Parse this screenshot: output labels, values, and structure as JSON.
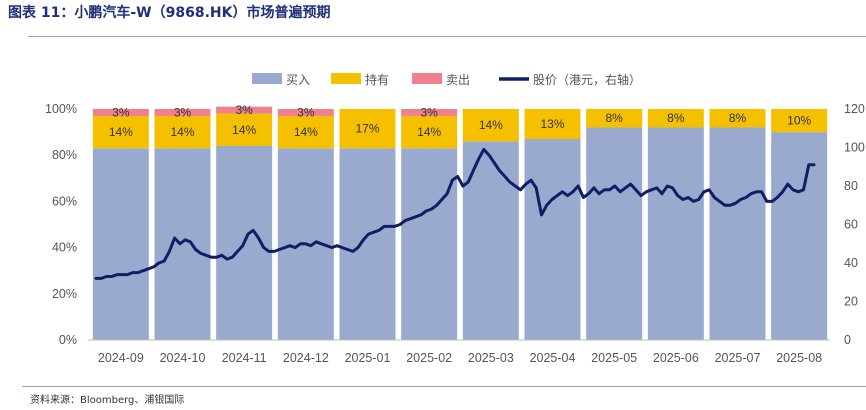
{
  "title": {
    "prefix": "图表 11：",
    "text": "小鹏汽车-W（9868.HK）市场普遍预期"
  },
  "source": "资料来源：Bloomberg、浦银国际",
  "colors": {
    "buy": "#9aaace",
    "hold": "#f5c000",
    "sell": "#f0808e",
    "price": "#0e1f66",
    "title": "#1f2f7a"
  },
  "chart_data": {
    "type": "bar",
    "stacked": true,
    "percent": true,
    "categories": [
      "2024-09",
      "2024-10",
      "2024-11",
      "2024-12",
      "2025-01",
      "2025-02",
      "2025-03",
      "2025-04",
      "2025-05",
      "2025-06",
      "2025-07",
      "2025-08"
    ],
    "series": [
      {
        "name": "买入",
        "values": [
          83,
          83,
          84,
          83,
          83,
          83,
          86,
          87,
          92,
          92,
          92,
          90
        ]
      },
      {
        "name": "持有",
        "values": [
          14,
          14,
          14,
          14,
          17,
          14,
          14,
          13,
          8,
          8,
          8,
          10
        ]
      },
      {
        "name": "卖出",
        "values": [
          3,
          3,
          3,
          3,
          0,
          3,
          0,
          0,
          0,
          0,
          0,
          0
        ]
      }
    ],
    "hold_labels": [
      "14%",
      "14%",
      "14%",
      "14%",
      "17%",
      "14%",
      "14%",
      "13%",
      "8%",
      "8%",
      "8%",
      "10%"
    ],
    "sell_labels": [
      "3%",
      "3%",
      "3%",
      "3%",
      "",
      "3%",
      "",
      "",
      "",
      "",
      "",
      ""
    ],
    "line": {
      "name": "股价（港元，右轴）",
      "axis": "right",
      "values": [
        32,
        32,
        33,
        33,
        34,
        34,
        34,
        35,
        35,
        36,
        37,
        38,
        40,
        41,
        46,
        53,
        50,
        52,
        51,
        47,
        45,
        44,
        43,
        43,
        44,
        42,
        43,
        46,
        49,
        55,
        57,
        53,
        48,
        46,
        46,
        47,
        48,
        49,
        48,
        50,
        50,
        49,
        51,
        50,
        49,
        48,
        49,
        48,
        47,
        46,
        48,
        52,
        55,
        56,
        57,
        59,
        59,
        59,
        60,
        62,
        63,
        64,
        65,
        67,
        68,
        70,
        73,
        76,
        83,
        85,
        80,
        82,
        88,
        94,
        99,
        96,
        92,
        88,
        85,
        82,
        80,
        78,
        81,
        83,
        79,
        65,
        70,
        73,
        75,
        77,
        75,
        77,
        80,
        74,
        76,
        79,
        76,
        78,
        78,
        80,
        77,
        79,
        81,
        78,
        75,
        77,
        78,
        79,
        76,
        80,
        79,
        75,
        73,
        74,
        72,
        73,
        77,
        78,
        74,
        72,
        70,
        70,
        71,
        73,
        74,
        76,
        77,
        77,
        72,
        72,
        74,
        77,
        81,
        78,
        77,
        78,
        91,
        91
      ]
    },
    "y_left": {
      "min": 0,
      "max": 100,
      "ticks": [
        "0%",
        "20%",
        "40%",
        "60%",
        "80%",
        "100%"
      ]
    },
    "y_right": {
      "min": 0,
      "max": 120,
      "ticks": [
        "0",
        "20",
        "40",
        "60",
        "80",
        "100",
        "120"
      ]
    },
    "legend": {
      "placement": "top",
      "items": [
        "买入",
        "持有",
        "卖出",
        "股价（港元，右轴）"
      ]
    }
  }
}
